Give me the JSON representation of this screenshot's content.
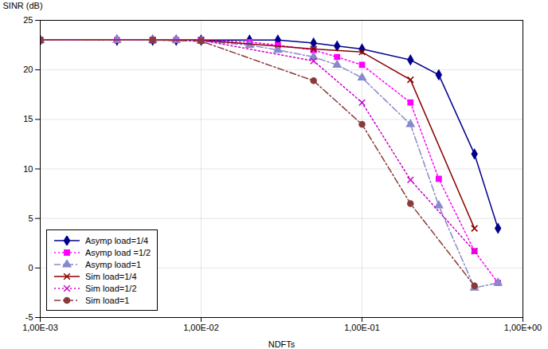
{
  "chart_data": {
    "type": "line",
    "title": "",
    "xlabel": "NDFTs",
    "ylabel": "SINR (dB)",
    "log": "x",
    "xlim": [
      0.001,
      1
    ],
    "xticks": [
      {
        "value": 0.001,
        "label": "1,00E-03"
      },
      {
        "value": 0.01,
        "label": "1,00E-02"
      },
      {
        "value": 0.1,
        "label": "1,00E-01"
      },
      {
        "value": 1,
        "label": "1,00E+00"
      }
    ],
    "ylim": [
      -5,
      25
    ],
    "yticks": [
      -5,
      0,
      5,
      10,
      15,
      20,
      25
    ],
    "grid": true,
    "legend": "lower left",
    "series": [
      {
        "name": "Asymp load=1/4",
        "color": "#00008B",
        "line_style": "solid",
        "marker": "diamond",
        "x": [
          0.001,
          0.003,
          0.005,
          0.007,
          0.01,
          0.02,
          0.03,
          0.05,
          0.07,
          0.1,
          0.2,
          0.3,
          0.5,
          0.7
        ],
        "values": [
          23.0,
          23.0,
          23.0,
          23.0,
          23.0,
          23.0,
          23.0,
          22.7,
          22.4,
          22.1,
          21.0,
          19.5,
          11.5,
          4.0
        ]
      },
      {
        "name": "Asymp load =1/2",
        "color": "#FF00FF",
        "line_style": "dotted",
        "marker": "square",
        "x": [
          0.001,
          0.003,
          0.005,
          0.007,
          0.01,
          0.02,
          0.03,
          0.05,
          0.07,
          0.1,
          0.2,
          0.3,
          0.5,
          0.7
        ],
        "values": [
          23.0,
          23.0,
          23.0,
          23.0,
          23.0,
          22.8,
          22.5,
          22.0,
          21.3,
          20.5,
          16.7,
          9.0,
          1.7,
          -1.5
        ]
      },
      {
        "name": "Asymp load=1",
        "color": "#8888CC",
        "line_style": "dashdot",
        "marker": "triangle",
        "x": [
          0.001,
          0.003,
          0.005,
          0.007,
          0.01,
          0.02,
          0.03,
          0.05,
          0.07,
          0.1,
          0.2,
          0.3,
          0.5,
          0.7
        ],
        "values": [
          23.0,
          23.0,
          23.0,
          23.0,
          22.9,
          22.5,
          22.0,
          21.3,
          20.5,
          19.2,
          14.5,
          6.3,
          -2.0,
          -1.5
        ]
      },
      {
        "name": "Sim load=1/4",
        "color": "#8B0000",
        "line_style": "solid",
        "marker": "x",
        "x": [
          0.001,
          0.005,
          0.01,
          0.05,
          0.1,
          0.2,
          0.5
        ],
        "values": [
          23.0,
          23.0,
          23.0,
          22.1,
          21.8,
          19.0,
          4.0
        ]
      },
      {
        "name": "Sim load=1/2",
        "color": "#CC00CC",
        "line_style": "dotted",
        "marker": "x",
        "x": [
          0.001,
          0.005,
          0.01,
          0.05,
          0.1,
          0.2,
          0.5
        ],
        "values": [
          23.0,
          23.0,
          23.0,
          20.9,
          16.7,
          8.9,
          1.7
        ]
      },
      {
        "name": "Sim load=1",
        "color": "#8B3A3A",
        "line_style": "dashdot",
        "marker": "circle",
        "x": [
          0.001,
          0.005,
          0.01,
          0.05,
          0.1,
          0.2,
          0.5
        ],
        "values": [
          23.0,
          23.0,
          22.9,
          18.9,
          14.5,
          6.5,
          -1.8
        ]
      }
    ]
  }
}
